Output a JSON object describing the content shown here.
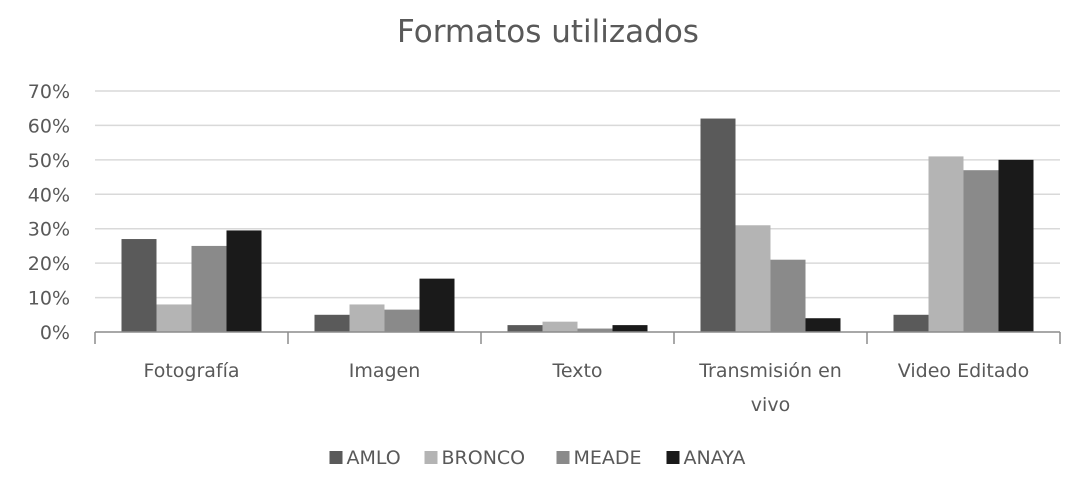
{
  "chart_data": {
    "type": "bar",
    "title": "Formatos utilizados",
    "categories": [
      "Fotografía",
      "Imagen",
      "Texto",
      "Transmisión en vivo",
      "Video Editado"
    ],
    "category_lines": [
      [
        "Fotografía"
      ],
      [
        "Imagen"
      ],
      [
        "Texto"
      ],
      [
        "Transmisión en",
        "vivo"
      ],
      [
        "Video Editado"
      ]
    ],
    "series": [
      {
        "name": "AMLO",
        "color": "#5a5a5a",
        "values": [
          0.27,
          0.05,
          0.02,
          0.62,
          0.05
        ]
      },
      {
        "name": "BRONCO",
        "color": "#b4b4b4",
        "values": [
          0.08,
          0.08,
          0.03,
          0.31,
          0.51
        ]
      },
      {
        "name": "MEADE",
        "color": "#8a8a8a",
        "values": [
          0.25,
          0.065,
          0.01,
          0.21,
          0.47
        ]
      },
      {
        "name": "ANAYA",
        "color": "#1a1a1a",
        "values": [
          0.295,
          0.155,
          0.02,
          0.04,
          0.5
        ]
      }
    ],
    "y_ticks": [
      0,
      0.1,
      0.2,
      0.3,
      0.4,
      0.5,
      0.6,
      0.7
    ],
    "y_tick_labels": [
      "0%",
      "10%",
      "20%",
      "30%",
      "40%",
      "50%",
      "60%",
      "70%"
    ],
    "ylim": [
      0,
      0.7
    ],
    "xlabel": "",
    "ylabel": "",
    "grid": true,
    "legend_position": "bottom",
    "gridline_color": "#d9d9d9",
    "text_color": "#595959"
  }
}
